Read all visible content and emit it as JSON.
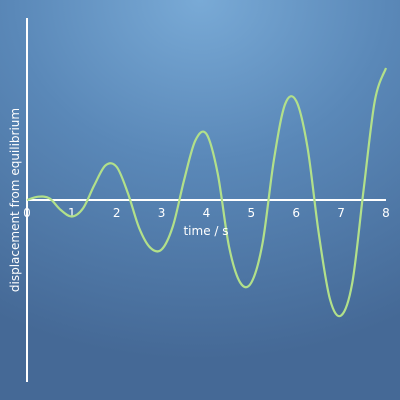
{
  "chart_data": {
    "type": "line",
    "xlabel": "time / s",
    "ylabel": "displacement from equilibrium",
    "xlim": [
      0,
      8
    ],
    "ylim": [
      -5.4,
      5.4
    ],
    "grid": false,
    "x_ticks": [
      "0",
      "1",
      "2",
      "3",
      "4",
      "5",
      "6",
      "7",
      "8"
    ],
    "series": [
      {
        "color": "#b2e08a",
        "x": [
          0,
          0.25,
          0.5,
          0.75,
          1,
          1.25,
          1.5,
          1.75,
          2,
          2.25,
          2.5,
          2.75,
          3,
          3.25,
          3.5,
          3.75,
          4,
          4.25,
          4.5,
          4.75,
          5,
          5.25,
          5.5,
          5.75,
          6,
          6.25,
          6.5,
          6.75,
          7,
          7.25,
          7.5,
          7.75,
          8
        ],
        "y": [
          0,
          0.1,
          0.05,
          -0.3,
          -0.5,
          -0.25,
          0.45,
          1.05,
          1.0,
          0.2,
          -0.85,
          -1.45,
          -1.5,
          -0.8,
          0.6,
          1.8,
          2.0,
          0.8,
          -1.4,
          -2.5,
          -2.5,
          -1.3,
          1.2,
          2.9,
          3.0,
          1.6,
          -1.0,
          -3.0,
          -3.5,
          -2.5,
          0.3,
          3.0,
          4.0
        ]
      }
    ]
  }
}
